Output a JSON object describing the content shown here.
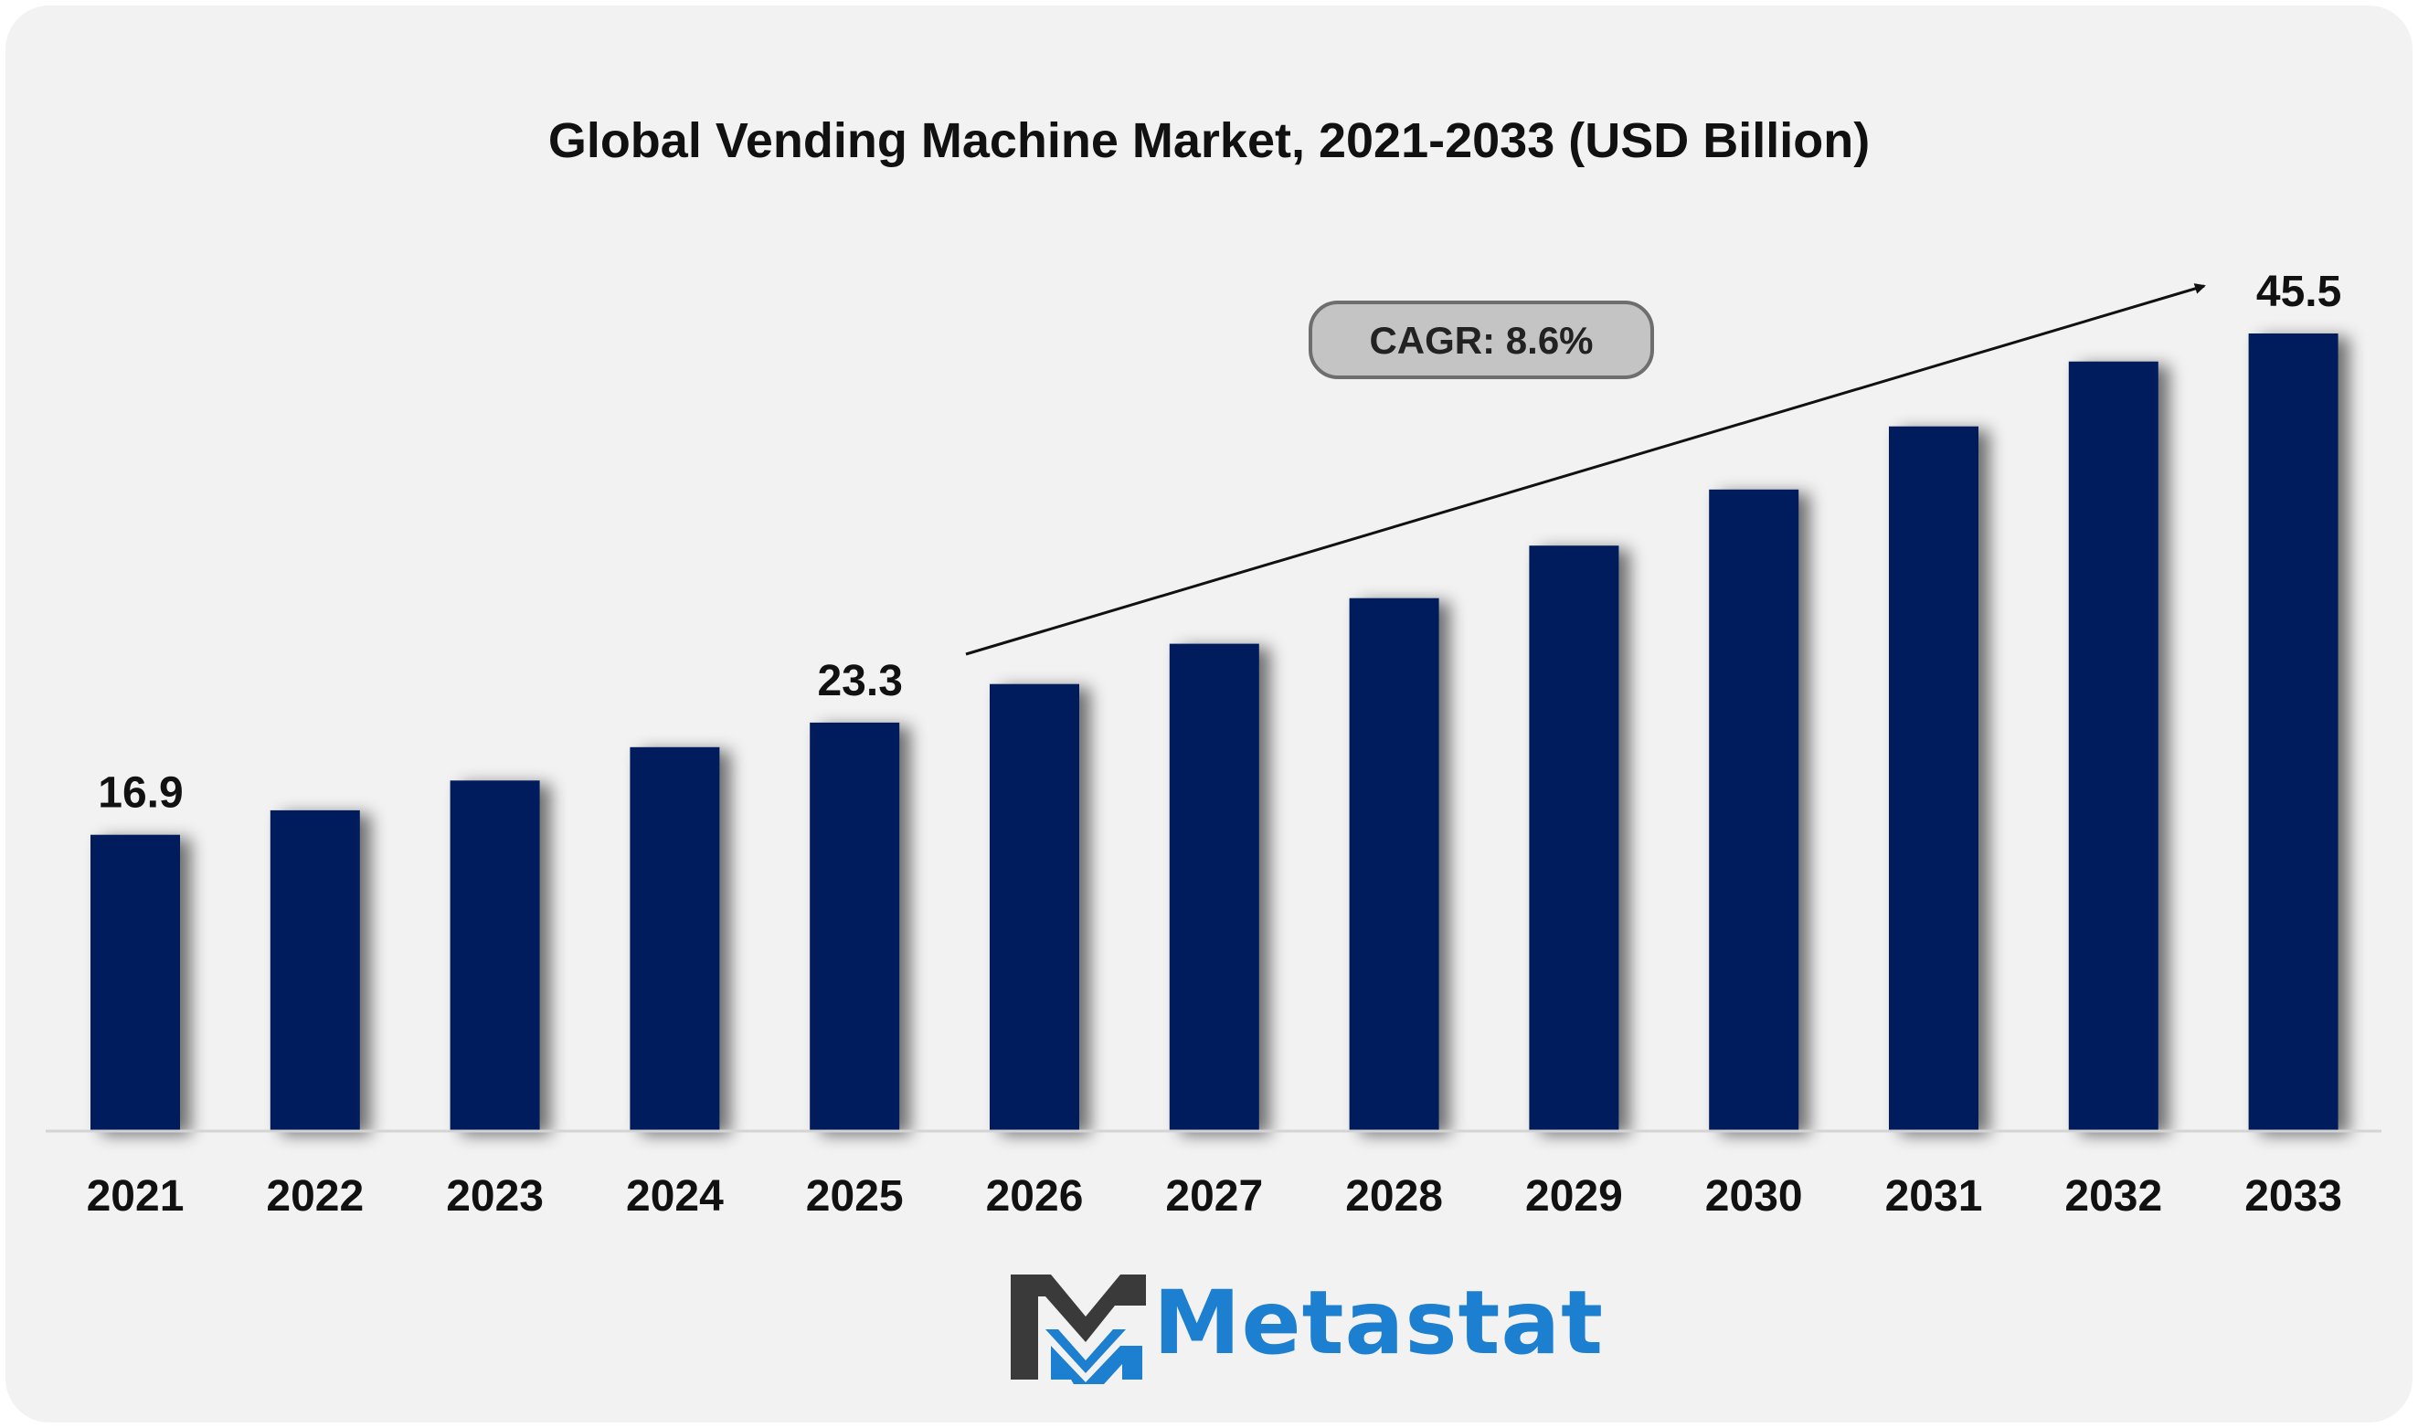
{
  "chart_data": {
    "type": "bar",
    "title": "Global Vending Machine Market, 2021-2033 (USD Billion)",
    "categories": [
      "2021",
      "2022",
      "2023",
      "2024",
      "2025",
      "2026",
      "2027",
      "2028",
      "2029",
      "2030",
      "2031",
      "2032",
      "2033"
    ],
    "values": [
      16.9,
      18.3,
      20.0,
      21.9,
      23.3,
      25.5,
      27.8,
      30.4,
      33.4,
      36.6,
      40.2,
      43.9,
      45.5
    ],
    "data_labels": [
      {
        "category": "2021",
        "text": "16.9"
      },
      {
        "category": "2025",
        "text": "23.3"
      },
      {
        "category": "2033",
        "text": "45.5"
      }
    ],
    "annotation": "CAGR: 8.6%",
    "ylim": [
      0,
      48
    ],
    "grid": false,
    "legend": "none",
    "bar_color": "#021f5c"
  },
  "brand": {
    "name": "Metastat",
    "color": "#1c7fd0",
    "mark_color": "#3a3a3a"
  }
}
